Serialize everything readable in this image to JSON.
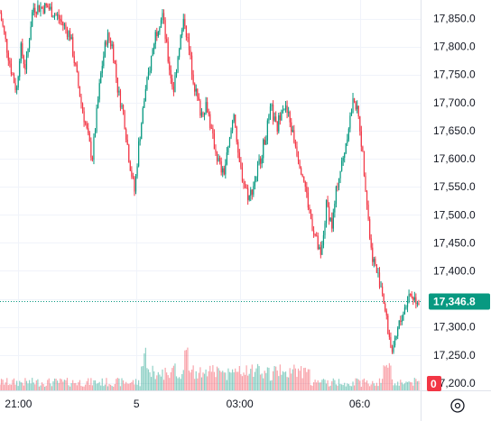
{
  "chart_data": {
    "type": "candlestick",
    "title": "",
    "xlabel": "",
    "ylabel": "",
    "ylim": [
      17187,
      17883
    ],
    "grid": true,
    "y_ticks": [
      17850,
      17800,
      17750,
      17700,
      17650,
      17600,
      17550,
      17500,
      17450,
      17400,
      17300,
      17250
    ],
    "y_tick_labels": [
      "17,850.0",
      "17,800.0",
      "17,750.0",
      "17,700.0",
      "17,650.0",
      "17,600.0",
      "17,550.0",
      "17,500.0",
      "17,450.0",
      "17,400.0",
      "17,300.0",
      "17,250.0"
    ],
    "x_ticks": [
      {
        "label": "21:00",
        "t": 0.05
      },
      {
        "label": "5",
        "t": 0.37
      },
      {
        "label": "03:00",
        "t": 0.65
      },
      {
        "label": "06:0",
        "t": 0.975
      }
    ],
    "last_price": 17346.8,
    "last_price_label": "17,346.8",
    "cut_off_tick_label": "17,200.0",
    "volume_badge": "0",
    "price_path": [
      [
        0.0,
        17860
      ],
      [
        0.012,
        17820
      ],
      [
        0.03,
        17760
      ],
      [
        0.045,
        17720
      ],
      [
        0.055,
        17800
      ],
      [
        0.07,
        17760
      ],
      [
        0.085,
        17850
      ],
      [
        0.09,
        17870
      ],
      [
        0.13,
        17870
      ],
      [
        0.16,
        17850
      ],
      [
        0.19,
        17820
      ],
      [
        0.205,
        17760
      ],
      [
        0.22,
        17700
      ],
      [
        0.235,
        17650
      ],
      [
        0.25,
        17600
      ],
      [
        0.265,
        17700
      ],
      [
        0.275,
        17760
      ],
      [
        0.29,
        17820
      ],
      [
        0.305,
        17800
      ],
      [
        0.32,
        17720
      ],
      [
        0.335,
        17680
      ],
      [
        0.35,
        17600
      ],
      [
        0.365,
        17540
      ],
      [
        0.375,
        17620
      ],
      [
        0.39,
        17700
      ],
      [
        0.405,
        17760
      ],
      [
        0.42,
        17820
      ],
      [
        0.44,
        17860
      ],
      [
        0.455,
        17780
      ],
      [
        0.47,
        17720
      ],
      [
        0.485,
        17800
      ],
      [
        0.5,
        17850
      ],
      [
        0.515,
        17780
      ],
      [
        0.53,
        17720
      ],
      [
        0.545,
        17680
      ],
      [
        0.56,
        17700
      ],
      [
        0.575,
        17640
      ],
      [
        0.59,
        17600
      ],
      [
        0.605,
        17570
      ],
      [
        0.62,
        17620
      ],
      [
        0.635,
        17690
      ],
      [
        0.645,
        17600
      ],
      [
        0.66,
        17560
      ],
      [
        0.675,
        17530
      ],
      [
        0.69,
        17560
      ],
      [
        0.705,
        17600
      ],
      [
        0.72,
        17640
      ],
      [
        0.735,
        17690
      ],
      [
        0.75,
        17650
      ],
      [
        0.765,
        17700
      ],
      [
        0.78,
        17680
      ],
      [
        0.795,
        17640
      ],
      [
        0.81,
        17600
      ],
      [
        0.825,
        17560
      ],
      [
        0.84,
        17500
      ],
      [
        0.855,
        17460
      ],
      [
        0.87,
        17420
      ],
      [
        0.885,
        17520
      ],
      [
        0.9,
        17480
      ],
      [
        0.915,
        17560
      ],
      [
        0.93,
        17600
      ],
      [
        0.945,
        17660
      ],
      [
        0.96,
        17710
      ],
      [
        0.975,
        17660
      ],
      [
        0.99,
        17560
      ],
      [
        1.005,
        17440
      ],
      [
        1.02,
        17400
      ],
      [
        1.035,
        17370
      ],
      [
        1.05,
        17300
      ],
      [
        1.065,
        17250
      ],
      [
        1.08,
        17300
      ],
      [
        1.095,
        17330
      ],
      [
        1.11,
        17360
      ],
      [
        1.125,
        17350
      ],
      [
        1.135,
        17346.8
      ]
    ]
  }
}
